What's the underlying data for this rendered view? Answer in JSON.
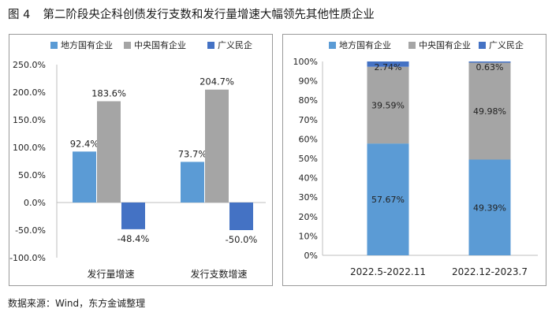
{
  "figure": {
    "number": "图 4",
    "title": "第二阶段央企科创债发行支数和发行量增速大幅领先其他性质企业"
  },
  "source": "数据来源：Wind，东方金诚整理",
  "colors": {
    "local_soe": "#5b9bd5",
    "central_soe": "#a5a5a5",
    "private": "#4472c4"
  },
  "chart_data": [
    {
      "type": "bar",
      "categories": [
        "发行量增速",
        "发行支数增速"
      ],
      "series": [
        {
          "name": "地方国有企业",
          "values": [
            92.4,
            73.7
          ],
          "labels": [
            "92.4%",
            "73.7%"
          ]
        },
        {
          "name": "中央国有企业",
          "values": [
            183.6,
            204.7
          ],
          "labels": [
            "183.6%",
            "204.7%"
          ]
        },
        {
          "name": "广义民企",
          "values": [
            -48.4,
            -50.0
          ],
          "labels": [
            "-48.4%",
            "-50.0%"
          ]
        }
      ],
      "ylim": [
        -100,
        250
      ],
      "yticks": [
        "-100.0%",
        "-50.0%",
        "0.0%",
        "50.0%",
        "100.0%",
        "150.0%",
        "200.0%",
        "250.0%"
      ],
      "ytick_values": [
        -100,
        -50,
        0,
        50,
        100,
        150,
        200,
        250
      ],
      "legend": "top",
      "grid": false
    },
    {
      "type": "bar",
      "stacked": true,
      "categories": [
        "2022.5-2022.11",
        "2022.12-2023.7"
      ],
      "series": [
        {
          "name": "地方国有企业",
          "values": [
            57.67,
            49.39
          ],
          "labels": [
            "57.67%",
            "49.39%"
          ]
        },
        {
          "name": "中央国有企业",
          "values": [
            39.59,
            49.98
          ],
          "labels": [
            "39.59%",
            "49.98%"
          ]
        },
        {
          "name": "广义民企",
          "values": [
            2.74,
            0.63
          ],
          "labels": [
            "2.74%",
            "0.63%"
          ]
        }
      ],
      "ylim": [
        0,
        100
      ],
      "yticks": [
        "0%",
        "10%",
        "20%",
        "30%",
        "40%",
        "50%",
        "60%",
        "70%",
        "80%",
        "90%",
        "100%"
      ],
      "ytick_values": [
        0,
        10,
        20,
        30,
        40,
        50,
        60,
        70,
        80,
        90,
        100
      ],
      "legend": "top",
      "grid": false
    }
  ]
}
